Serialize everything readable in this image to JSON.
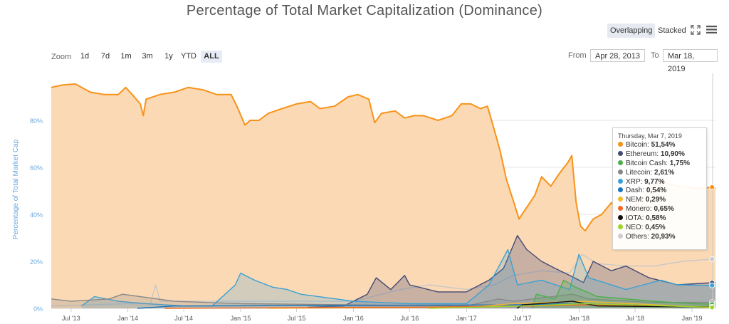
{
  "header": {
    "title": "Percentage of Total Market Capitalization (Dominance)"
  },
  "controls": {
    "overlapping_label": "Overlapping",
    "stacked_label": "Stacked",
    "zoom_label": "Zoom",
    "zoom_options": [
      "1d",
      "7d",
      "1m",
      "3m",
      "1y",
      "YTD",
      "ALL"
    ],
    "zoom_selected": "ALL",
    "from_label": "From",
    "from_value": "Apr 28, 2013",
    "to_label": "To",
    "to_value": "Mar 18, 2019",
    "expand_icon": "expand-icon",
    "menu_icon": "hamburger-menu-icon"
  },
  "tooltip": {
    "date": "Thursday, Mar 7, 2019",
    "rows": [
      {
        "name": "Bitcoin",
        "value": "51,54%",
        "color": "#f7931a"
      },
      {
        "name": "Ethereum",
        "value": "10,90%",
        "color": "#454a75"
      },
      {
        "name": "Bitcoin Cash",
        "value": "1,75%",
        "color": "#4cae4c"
      },
      {
        "name": "Litecoin",
        "value": "2,61%",
        "color": "#888888"
      },
      {
        "name": "XRP",
        "value": "9,77%",
        "color": "#3aa1d4"
      },
      {
        "name": "Dash",
        "value": "0,54%",
        "color": "#1c75bc"
      },
      {
        "name": "NEM",
        "value": "0,29%",
        "color": "#f5b82e"
      },
      {
        "name": "Monero",
        "value": "0,65%",
        "color": "#f26822"
      },
      {
        "name": "IOTA",
        "value": "0,58%",
        "color": "#111111"
      },
      {
        "name": "NEO",
        "value": "0,45%",
        "color": "#9bd42a"
      },
      {
        "name": "Others",
        "value": "20,93%",
        "color": "#cfcfcf"
      }
    ]
  },
  "chart_data": {
    "type": "area",
    "title": "Percentage of Total Market Capitalization (Dominance)",
    "ylabel": "Percentage of Total Market Cap",
    "ylim": [
      0,
      100
    ],
    "yticks": [
      0,
      20,
      40,
      60,
      80
    ],
    "ytick_labels": [
      "0%",
      "20%",
      "40%",
      "60%",
      "80%"
    ],
    "xlim": [
      "2013-04-28",
      "2019-03-18"
    ],
    "xticks": [
      "2013-07-01",
      "2014-01-01",
      "2014-07-01",
      "2015-01-01",
      "2015-07-01",
      "2016-01-01",
      "2016-07-01",
      "2017-01-01",
      "2017-07-01",
      "2018-01-01",
      "2018-07-01",
      "2019-01-01"
    ],
    "xtick_labels": [
      "Jul '13",
      "Jan '14",
      "Jul '14",
      "Jan '15",
      "Jul '15",
      "Jan '16",
      "Jul '16",
      "Jan '17",
      "Jul '17",
      "Jan '18",
      "Jul '18",
      "Jan '19"
    ],
    "grid": true,
    "series": [
      {
        "name": "Bitcoin",
        "color": "#f7931a",
        "fill": "#fbd9b4",
        "points": [
          [
            "2013-04-28",
            94
          ],
          [
            "2013-06-01",
            95
          ],
          [
            "2013-07-15",
            95.5
          ],
          [
            "2013-09-01",
            92
          ],
          [
            "2013-10-15",
            91
          ],
          [
            "2013-12-01",
            91
          ],
          [
            "2013-12-25",
            94
          ],
          [
            "2014-01-15",
            91
          ],
          [
            "2014-02-10",
            87
          ],
          [
            "2014-02-20",
            82
          ],
          [
            "2014-03-01",
            89
          ],
          [
            "2014-04-15",
            91
          ],
          [
            "2014-06-01",
            92
          ],
          [
            "2014-07-15",
            94
          ],
          [
            "2014-09-01",
            93
          ],
          [
            "2014-10-15",
            91
          ],
          [
            "2014-12-01",
            91
          ],
          [
            "2014-12-20",
            86
          ],
          [
            "2015-01-15",
            78
          ],
          [
            "2015-02-01",
            80
          ],
          [
            "2015-03-01",
            80
          ],
          [
            "2015-04-01",
            83
          ],
          [
            "2015-05-15",
            85
          ],
          [
            "2015-07-01",
            87
          ],
          [
            "2015-08-15",
            88
          ],
          [
            "2015-09-15",
            85
          ],
          [
            "2015-11-01",
            86
          ],
          [
            "2015-12-15",
            90
          ],
          [
            "2016-01-15",
            91
          ],
          [
            "2016-02-20",
            89
          ],
          [
            "2016-03-10",
            79
          ],
          [
            "2016-04-01",
            83
          ],
          [
            "2016-05-15",
            84
          ],
          [
            "2016-06-15",
            81
          ],
          [
            "2016-07-15",
            82
          ],
          [
            "2016-08-15",
            82
          ],
          [
            "2016-10-01",
            80
          ],
          [
            "2016-11-15",
            82
          ],
          [
            "2016-12-15",
            87
          ],
          [
            "2017-01-15",
            87
          ],
          [
            "2017-02-15",
            85
          ],
          [
            "2017-03-10",
            86
          ],
          [
            "2017-04-01",
            76
          ],
          [
            "2017-04-20",
            67
          ],
          [
            "2017-05-10",
            55
          ],
          [
            "2017-06-01",
            46
          ],
          [
            "2017-06-20",
            38
          ],
          [
            "2017-07-10",
            42
          ],
          [
            "2017-08-10",
            48
          ],
          [
            "2017-09-01",
            56
          ],
          [
            "2017-10-01",
            52
          ],
          [
            "2017-11-01",
            58
          ],
          [
            "2017-11-25",
            62
          ],
          [
            "2017-12-08",
            65
          ],
          [
            "2017-12-22",
            45
          ],
          [
            "2018-01-05",
            35
          ],
          [
            "2018-01-20",
            33
          ],
          [
            "2018-02-15",
            38
          ],
          [
            "2018-03-15",
            40
          ],
          [
            "2018-04-15",
            45
          ],
          [
            "2018-05-15",
            38
          ],
          [
            "2018-06-15",
            42
          ],
          [
            "2018-08-01",
            48
          ],
          [
            "2018-09-15",
            54
          ],
          [
            "2018-10-15",
            53
          ],
          [
            "2018-11-20",
            52
          ],
          [
            "2019-01-15",
            51
          ],
          [
            "2019-03-07",
            51.54
          ],
          [
            "2019-03-18",
            51
          ]
        ]
      },
      {
        "name": "Others",
        "color": "#c8c8c8",
        "fill": "none",
        "points": [
          [
            "2013-04-28",
            1
          ],
          [
            "2014-01-01",
            2
          ],
          [
            "2014-03-15",
            2
          ],
          [
            "2014-04-01",
            10
          ],
          [
            "2014-04-15",
            3
          ],
          [
            "2015-01-01",
            3
          ],
          [
            "2016-01-01",
            3
          ],
          [
            "2016-06-01",
            8
          ],
          [
            "2016-09-01",
            10
          ],
          [
            "2017-01-01",
            8
          ],
          [
            "2017-04-01",
            10
          ],
          [
            "2017-06-01",
            14
          ],
          [
            "2017-09-01",
            16
          ],
          [
            "2017-12-01",
            15
          ],
          [
            "2018-01-10",
            23
          ],
          [
            "2018-03-01",
            19
          ],
          [
            "2018-06-01",
            18
          ],
          [
            "2018-09-01",
            18
          ],
          [
            "2018-12-01",
            20
          ],
          [
            "2019-03-07",
            20.93
          ],
          [
            "2019-03-18",
            21
          ]
        ]
      },
      {
        "name": "Ethereum",
        "color": "#454a75",
        "fill": "rgba(69,74,117,0.28)",
        "points": [
          [
            "2015-08-07",
            0.5
          ],
          [
            "2015-12-01",
            1
          ],
          [
            "2016-02-15",
            6
          ],
          [
            "2016-03-15",
            13
          ],
          [
            "2016-05-01",
            8
          ],
          [
            "2016-06-15",
            14
          ],
          [
            "2016-07-01",
            10
          ],
          [
            "2016-10-01",
            7
          ],
          [
            "2017-01-01",
            7
          ],
          [
            "2017-03-15",
            12
          ],
          [
            "2017-05-01",
            17
          ],
          [
            "2017-06-15",
            31
          ],
          [
            "2017-07-15",
            25
          ],
          [
            "2017-09-01",
            20
          ],
          [
            "2017-10-15",
            17
          ],
          [
            "2017-12-01",
            14
          ],
          [
            "2018-01-15",
            11
          ],
          [
            "2018-02-15",
            20
          ],
          [
            "2018-04-15",
            16
          ],
          [
            "2018-06-01",
            18
          ],
          [
            "2018-08-15",
            13
          ],
          [
            "2018-11-15",
            10
          ],
          [
            "2019-03-07",
            10.9
          ],
          [
            "2019-03-18",
            11
          ]
        ]
      },
      {
        "name": "XRP",
        "color": "#3aa1d4",
        "fill": "rgba(58,161,212,0.22)",
        "points": [
          [
            "2013-08-04",
            1
          ],
          [
            "2013-09-15",
            5
          ],
          [
            "2013-12-01",
            3
          ],
          [
            "2014-03-01",
            2
          ],
          [
            "2014-07-01",
            1
          ],
          [
            "2014-10-01",
            1
          ],
          [
            "2014-12-15",
            10
          ],
          [
            "2015-01-01",
            15
          ],
          [
            "2015-02-15",
            12
          ],
          [
            "2015-04-15",
            9
          ],
          [
            "2015-06-01",
            8
          ],
          [
            "2015-07-15",
            6
          ],
          [
            "2016-01-01",
            3
          ],
          [
            "2016-07-01",
            2
          ],
          [
            "2017-01-01",
            2
          ],
          [
            "2017-03-15",
            10
          ],
          [
            "2017-05-15",
            25
          ],
          [
            "2017-06-15",
            10
          ],
          [
            "2017-09-01",
            12
          ],
          [
            "2017-12-01",
            8
          ],
          [
            "2017-12-31",
            23
          ],
          [
            "2018-02-01",
            13
          ],
          [
            "2018-06-01",
            8
          ],
          [
            "2018-09-22",
            12
          ],
          [
            "2018-11-15",
            10
          ],
          [
            "2019-03-07",
            9.77
          ],
          [
            "2019-03-18",
            10
          ]
        ]
      },
      {
        "name": "Litecoin",
        "color": "#888888",
        "fill": "rgba(140,140,140,0.25)",
        "points": [
          [
            "2013-04-28",
            4
          ],
          [
            "2013-07-01",
            3
          ],
          [
            "2013-11-01",
            4
          ],
          [
            "2013-12-15",
            6
          ],
          [
            "2014-06-01",
            3
          ],
          [
            "2015-01-01",
            2
          ],
          [
            "2016-01-01",
            1.5
          ],
          [
            "2017-01-01",
            1
          ],
          [
            "2017-04-15",
            4
          ],
          [
            "2017-06-01",
            3
          ],
          [
            "2017-12-10",
            6
          ],
          [
            "2018-02-01",
            4
          ],
          [
            "2018-09-01",
            2.5
          ],
          [
            "2019-03-07",
            2.61
          ],
          [
            "2019-03-18",
            2.7
          ]
        ]
      },
      {
        "name": "Bitcoin Cash",
        "color": "#4cae4c",
        "fill": "rgba(76,174,76,0.25)",
        "points": [
          [
            "2017-08-01",
            0
          ],
          [
            "2017-08-15",
            6
          ],
          [
            "2017-10-15",
            4
          ],
          [
            "2017-11-12",
            12
          ],
          [
            "2017-12-20",
            9
          ],
          [
            "2018-03-01",
            5
          ],
          [
            "2018-09-01",
            3
          ],
          [
            "2019-01-01",
            2
          ],
          [
            "2019-03-07",
            1.75
          ],
          [
            "2019-03-18",
            1.8
          ]
        ]
      },
      {
        "name": "Dash",
        "color": "#1c75bc",
        "fill": "none",
        "points": [
          [
            "2014-02-01",
            0
          ],
          [
            "2014-06-01",
            1
          ],
          [
            "2017-06-01",
            1.5
          ],
          [
            "2018-01-01",
            2
          ],
          [
            "2019-03-07",
            0.54
          ],
          [
            "2019-03-18",
            0.5
          ]
        ]
      },
      {
        "name": "NEM",
        "color": "#f5b82e",
        "fill": "none",
        "points": [
          [
            "2015-04-01",
            0
          ],
          [
            "2017-01-01",
            0.5
          ],
          [
            "2017-06-01",
            2
          ],
          [
            "2018-01-10",
            3
          ],
          [
            "2019-03-07",
            0.29
          ],
          [
            "2019-03-18",
            0.3
          ]
        ]
      },
      {
        "name": "Monero",
        "color": "#f26822",
        "fill": "none",
        "points": [
          [
            "2014-05-01",
            0
          ],
          [
            "2016-08-01",
            0.5
          ],
          [
            "2017-08-01",
            1
          ],
          [
            "2018-01-10",
            1.5
          ],
          [
            "2019-03-07",
            0.65
          ],
          [
            "2019-03-18",
            0.65
          ]
        ]
      },
      {
        "name": "IOTA",
        "color": "#111111",
        "fill": "none",
        "points": [
          [
            "2017-06-13",
            0
          ],
          [
            "2017-07-01",
            1.5
          ],
          [
            "2017-12-10",
            3
          ],
          [
            "2018-03-01",
            1
          ],
          [
            "2019-03-07",
            0.58
          ],
          [
            "2019-03-18",
            0.6
          ]
        ]
      },
      {
        "name": "NEO",
        "color": "#9bd42a",
        "fill": "none",
        "points": [
          [
            "2016-09-01",
            0
          ],
          [
            "2017-07-01",
            1
          ],
          [
            "2018-01-15",
            2
          ],
          [
            "2019-03-07",
            0.45
          ],
          [
            "2019-03-18",
            0.45
          ]
        ]
      }
    ]
  }
}
